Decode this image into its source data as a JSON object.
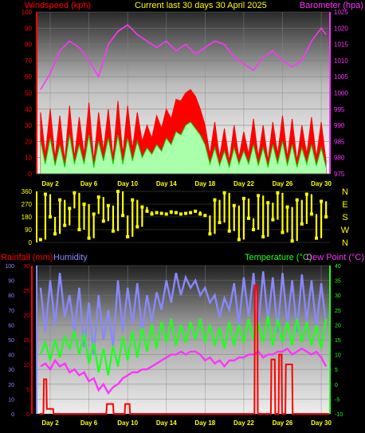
{
  "colors": {
    "wind": "#ff0000",
    "gust_fill": "#ff0000",
    "avg_fill": "#aaffaa",
    "avg_line": "#00dd00",
    "baro": "#ff33ff",
    "dir": "#ffff00",
    "rain": "#ff0000",
    "humidity": "#8888ff",
    "temperature": "#22ff22",
    "dewpoint": "#ff33ff",
    "title": "#ffff00",
    "day_text": "#ffff00",
    "dir_text": "#ffff00"
  },
  "chart_data": [
    {
      "type": "line",
      "title": "Current last 30 days 30 April 2025",
      "ylabel": "Windspeed (kph)",
      "y2label": "Barometer (hpa)",
      "ylim": [
        0,
        100
      ],
      "y2lim": [
        975,
        1025
      ],
      "yticks": [
        "0",
        "10",
        "20",
        "30",
        "40",
        "50",
        "60",
        "70",
        "80",
        "90",
        "100"
      ],
      "y2ticks": [
        "975",
        "980",
        "985",
        "990",
        "995",
        "1000",
        "1005",
        "1010",
        "1015",
        "1020",
        "1025"
      ],
      "xticks": [
        "Day 2",
        "Day 6",
        "Day 10",
        "Day 14",
        "Day 18",
        "Day 22",
        "Day 26",
        "Day 30"
      ],
      "xtick_days": [
        2,
        6,
        10,
        14,
        18,
        22,
        26,
        30
      ],
      "xlim": [
        0.6,
        30.9
      ],
      "series": [
        {
          "name": "Windspeed",
          "axis": "y",
          "style": "gust",
          "x": [
            1,
            1.5,
            2,
            2.5,
            3,
            3.5,
            4,
            4.5,
            5,
            5.5,
            6,
            6.5,
            7,
            7.5,
            8,
            8.5,
            9,
            9.5,
            10,
            10.5,
            11,
            11.5,
            12,
            12.5,
            13,
            13.5,
            14,
            14.5,
            15,
            15.5,
            16,
            16.5,
            17,
            17.5,
            18,
            18.5,
            19,
            19.5,
            20,
            20.5,
            21,
            21.5,
            22,
            22.5,
            23,
            23.5,
            24,
            24.5,
            25,
            25.5,
            26,
            26.5,
            27,
            27.5,
            28,
            28.5,
            29,
            29.5,
            30,
            30.5
          ],
          "values": [
            38,
            12,
            40,
            10,
            36,
            8,
            42,
            10,
            35,
            12,
            44,
            8,
            38,
            14,
            40,
            10,
            45,
            12,
            42,
            15,
            38,
            20,
            30,
            22,
            36,
            28,
            40,
            34,
            46,
            45,
            50,
            52,
            48,
            40,
            30,
            12,
            32,
            10,
            28,
            8,
            30,
            10,
            26,
            12,
            34,
            10,
            30,
            8,
            32,
            12,
            36,
            10,
            34,
            8,
            30,
            12,
            35,
            10,
            32,
            8
          ]
        },
        {
          "name": "Average",
          "axis": "y",
          "style": "avg",
          "x": [
            1,
            1.5,
            2,
            2.5,
            3,
            3.5,
            4,
            4.5,
            5,
            5.5,
            6,
            6.5,
            7,
            7.5,
            8,
            8.5,
            9,
            9.5,
            10,
            10.5,
            11,
            11.5,
            12,
            12.5,
            13,
            13.5,
            14,
            14.5,
            15,
            15.5,
            16,
            16.5,
            17,
            17.5,
            18,
            18.5,
            19,
            19.5,
            20,
            20.5,
            21,
            21.5,
            22,
            22.5,
            23,
            23.5,
            24,
            24.5,
            25,
            25.5,
            26,
            26.5,
            27,
            27.5,
            28,
            28.5,
            29,
            29.5,
            30,
            30.5
          ],
          "values": [
            20,
            6,
            22,
            5,
            18,
            4,
            24,
            6,
            18,
            6,
            24,
            4,
            20,
            8,
            22,
            6,
            24,
            6,
            22,
            8,
            20,
            10,
            16,
            12,
            18,
            14,
            22,
            18,
            26,
            24,
            30,
            32,
            28,
            24,
            18,
            6,
            16,
            5,
            14,
            4,
            16,
            6,
            14,
            6,
            18,
            5,
            16,
            4,
            18,
            6,
            20,
            5,
            18,
            4,
            16,
            6,
            18,
            5,
            16,
            4
          ]
        },
        {
          "name": "Barometer",
          "axis": "y2",
          "style": "line",
          "x": [
            1,
            2,
            3,
            4,
            5,
            6,
            7,
            8,
            9,
            10,
            11,
            12,
            13,
            14,
            15,
            16,
            17,
            18,
            19,
            20,
            21,
            22,
            23,
            24,
            25,
            26,
            27,
            28,
            29,
            30,
            30.5
          ],
          "values": [
            1001,
            1006,
            1013,
            1016,
            1014,
            1010,
            1005,
            1015,
            1019,
            1021,
            1018,
            1016,
            1014,
            1016,
            1013,
            1015,
            1012,
            1014,
            1016,
            1015,
            1011,
            1009,
            1007,
            1011,
            1013,
            1010,
            1008,
            1010,
            1016,
            1020,
            1018
          ]
        }
      ]
    },
    {
      "type": "scatter",
      "ylim": [
        0,
        360
      ],
      "yticks": [
        "0",
        "90",
        "180",
        "270",
        "360"
      ],
      "compass": [
        "N",
        "W",
        "S",
        "E",
        "N"
      ],
      "xlim": [
        0.6,
        30.9
      ],
      "series": [
        {
          "name": "Wind direction",
          "x": [
            1,
            1.5,
            2,
            2.5,
            3,
            3.5,
            4,
            4.5,
            5,
            5.5,
            6,
            6.5,
            7,
            7.5,
            8,
            8.5,
            9,
            9.5,
            10,
            10.5,
            11,
            11.5,
            12,
            12.5,
            13,
            13.5,
            14,
            14.5,
            15,
            15.5,
            16,
            16.5,
            17,
            17.5,
            18,
            18.5,
            19,
            19.5,
            20,
            20.5,
            21,
            21.5,
            22,
            22.5,
            23,
            23.5,
            24,
            24.5,
            25,
            25.5,
            26,
            26.5,
            27,
            27.5,
            28,
            28.5,
            29,
            29.5,
            30,
            30.5
          ],
          "values": [
            20,
            340,
            180,
            60,
            300,
            120,
            240,
            350,
            90,
            270,
            30,
            200,
            320,
            150,
            260,
            80,
            360,
            190,
            40,
            300,
            110,
            250,
            220,
            200,
            210,
            205,
            200,
            215,
            210,
            200,
            205,
            210,
            220,
            200,
            190,
            60,
            300,
            140,
            350,
            80,
            260,
            20,
            310,
            170,
            90,
            330,
            40,
            280,
            160,
            350,
            70,
            250,
            10,
            300,
            130,
            340,
            200,
            30,
            290,
            180
          ]
        }
      ]
    },
    {
      "type": "line",
      "ylabel": "Rainfall (mm)",
      "ylabel2": "Humidity",
      "y2label": "Temperature (°C)",
      "y2label2": "Dew Point (°C)",
      "rain_ylim": [
        0,
        30
      ],
      "rain_ticks": [
        "0",
        "5",
        "10",
        "15",
        "20",
        "25",
        "30"
      ],
      "hum_ylim": [
        0,
        100
      ],
      "hum_ticks": [
        "0",
        "10",
        "20",
        "30",
        "40",
        "50",
        "60",
        "70",
        "80",
        "90",
        "100"
      ],
      "temp_ylim": [
        -10,
        40
      ],
      "temp_ticks": [
        "-10",
        "-5",
        "0",
        "5",
        "10",
        "15",
        "20",
        "25",
        "30",
        "35",
        "40"
      ],
      "xticks": [
        "Day 2",
        "Day 6",
        "Day 10",
        "Day 14",
        "Day 18",
        "Day 22",
        "Day 26",
        "Day 30"
      ],
      "xtick_days": [
        2,
        6,
        10,
        14,
        18,
        22,
        26,
        30
      ],
      "xlim": [
        0.6,
        30.9
      ],
      "series": [
        {
          "name": "Humidity",
          "axis": "humidity",
          "x": [
            1,
            1.5,
            2,
            2.5,
            3,
            3.5,
            4,
            4.5,
            5,
            5.5,
            6,
            6.5,
            7,
            7.5,
            8,
            8.5,
            9,
            9.5,
            10,
            10.5,
            11,
            11.5,
            12,
            12.5,
            13,
            13.5,
            14,
            14.5,
            15,
            15.5,
            16,
            16.5,
            17,
            17.5,
            18,
            18.5,
            19,
            19.5,
            20,
            20.5,
            21,
            21.5,
            22,
            22.5,
            23,
            23.5,
            24,
            24.5,
            25,
            25.5,
            26,
            26.5,
            27,
            27.5,
            28,
            28.5,
            29,
            29.5,
            30,
            30.5
          ],
          "values": [
            85,
            55,
            90,
            60,
            95,
            65,
            80,
            55,
            85,
            45,
            75,
            40,
            80,
            50,
            70,
            45,
            90,
            55,
            85,
            60,
            88,
            55,
            80,
            62,
            82,
            70,
            90,
            75,
            95,
            80,
            92,
            85,
            90,
            80,
            85,
            75,
            80,
            65,
            78,
            70,
            88,
            60,
            92,
            65,
            95,
            58,
            96,
            62,
            92,
            55,
            95,
            60,
            90,
            55,
            94,
            62,
            90,
            58,
            88,
            60
          ]
        },
        {
          "name": "Temperature",
          "axis": "temperature",
          "x": [
            1,
            1.5,
            2,
            2.5,
            3,
            3.5,
            4,
            4.5,
            5,
            5.5,
            6,
            6.5,
            7,
            7.5,
            8,
            8.5,
            9,
            9.5,
            10,
            10.5,
            11,
            11.5,
            12,
            12.5,
            13,
            13.5,
            14,
            14.5,
            15,
            15.5,
            16,
            16.5,
            17,
            17.5,
            18,
            18.5,
            19,
            19.5,
            20,
            20.5,
            21,
            21.5,
            22,
            22.5,
            23,
            23.5,
            24,
            24.5,
            25,
            25.5,
            26,
            26.5,
            27,
            27.5,
            28,
            28.5,
            29,
            29.5,
            30,
            30.5
          ],
          "values": [
            10,
            14,
            8,
            15,
            9,
            16,
            12,
            18,
            10,
            17,
            7,
            14,
            4,
            12,
            3,
            13,
            6,
            16,
            8,
            18,
            9,
            19,
            11,
            20,
            12,
            21,
            14,
            22,
            13,
            20,
            14,
            21,
            15,
            22,
            14,
            20,
            13,
            19,
            12,
            21,
            13,
            20,
            14,
            22,
            15,
            21,
            14,
            23,
            13,
            22,
            14,
            21,
            13,
            22,
            14,
            21,
            13,
            20,
            12,
            22
          ]
        },
        {
          "name": "Dew Point",
          "axis": "temperature",
          "x": [
            1,
            1.5,
            2,
            2.5,
            3,
            3.5,
            4,
            4.5,
            5,
            5.5,
            6,
            6.5,
            7,
            7.5,
            8,
            8.5,
            9,
            9.5,
            10,
            10.5,
            11,
            11.5,
            12,
            12.5,
            13,
            13.5,
            14,
            14.5,
            15,
            15.5,
            16,
            16.5,
            17,
            17.5,
            18,
            18.5,
            19,
            19.5,
            20,
            20.5,
            21,
            21.5,
            22,
            22.5,
            23,
            23.5,
            24,
            24.5,
            25,
            25.5,
            26,
            26.5,
            27,
            27.5,
            28,
            28.5,
            29,
            29.5,
            30,
            30.5
          ],
          "values": [
            6,
            7,
            5,
            8,
            6,
            7,
            4,
            5,
            3,
            4,
            1,
            2,
            -2,
            0,
            -3,
            -1,
            0,
            2,
            3,
            4,
            4,
            5,
            5,
            6,
            7,
            8,
            9,
            10,
            10,
            11,
            10,
            11,
            11,
            10,
            8,
            9,
            7,
            8,
            6,
            8,
            8,
            9,
            9,
            10,
            10,
            11,
            9,
            10,
            10,
            11,
            11,
            12,
            10,
            11,
            12,
            11,
            10,
            11,
            9,
            6
          ]
        },
        {
          "name": "Rainfall",
          "axis": "rain",
          "style": "step",
          "x": [
            0.9,
            1.3,
            1.35,
            1.6,
            1.65,
            2.3,
            2.35,
            7.8,
            7.85,
            8.5,
            8.55,
            9.7,
            9.75,
            10.2,
            10.25,
            23.1,
            23.15,
            23.4,
            23.45,
            24.8,
            24.85,
            25.2,
            25.25,
            25.6,
            25.65,
            25.9,
            25.95,
            26.3,
            26.35,
            27.0,
            27.05,
            27.3,
            27.35,
            30.9
          ],
          "values": [
            0,
            0,
            7,
            7,
            1,
            1,
            0,
            0,
            2,
            2,
            0,
            0,
            2,
            2,
            0,
            0,
            26,
            26,
            0,
            0,
            11,
            11,
            0,
            0,
            12,
            12,
            0,
            0,
            10,
            10,
            0,
            0,
            0,
            0
          ]
        }
      ]
    }
  ]
}
